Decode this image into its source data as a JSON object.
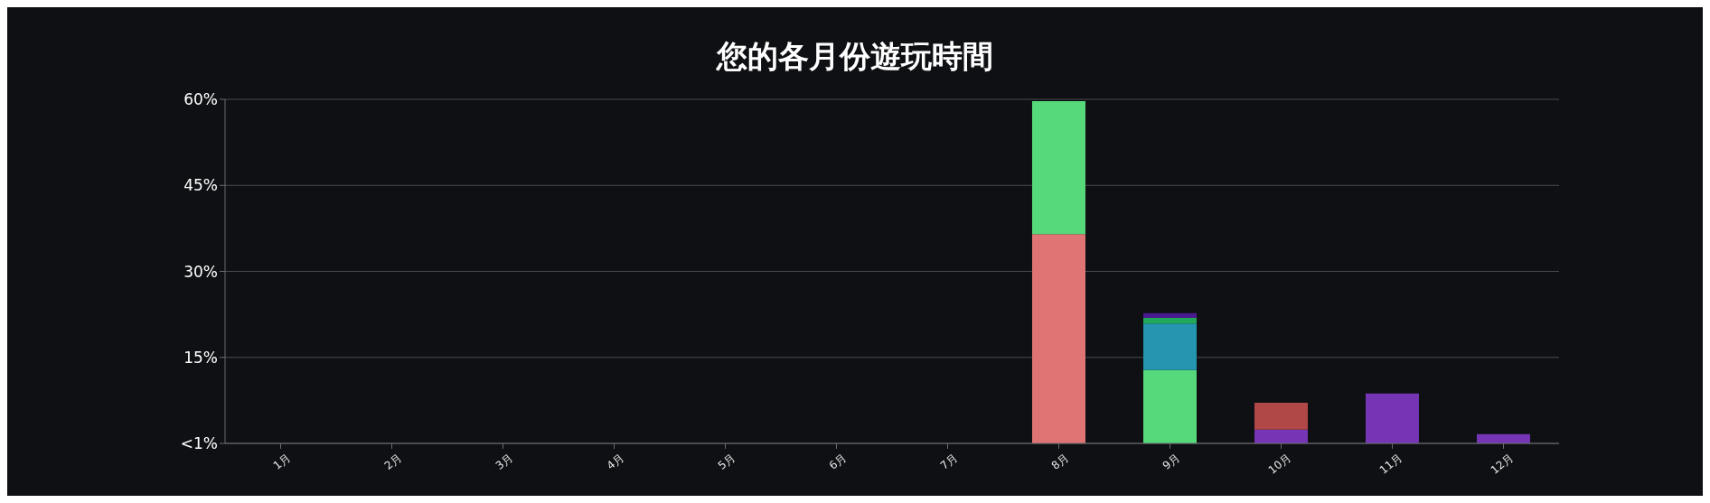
{
  "chart_data": {
    "type": "bar",
    "title": "您的各月份遊玩時間",
    "stacked": true,
    "grid": "y",
    "legend": false,
    "categories": [
      "1月",
      "2月",
      "3月",
      "4月",
      "5月",
      "6月",
      "7月",
      "8月",
      "9月",
      "10月",
      "11月",
      "12月"
    ],
    "ylim": [
      0,
      60
    ],
    "yticks": [
      {
        "value": 0,
        "label": "<1%"
      },
      {
        "value": 15,
        "label": "15%"
      },
      {
        "value": 30,
        "label": "30%"
      },
      {
        "value": 45,
        "label": "45%"
      },
      {
        "value": 60,
        "label": "60%"
      }
    ],
    "series": [
      {
        "color": "#e07474",
        "values": [
          null,
          null,
          null,
          null,
          null,
          null,
          null,
          36.5,
          null,
          null,
          null,
          null
        ]
      },
      {
        "color": "#55d97a",
        "values": [
          null,
          null,
          null,
          null,
          null,
          null,
          null,
          23.2,
          12.8,
          null,
          null,
          null
        ]
      },
      {
        "color": "#7535b5",
        "values": [
          null,
          null,
          null,
          null,
          null,
          null,
          null,
          null,
          null,
          2.4,
          8.7,
          1.6
        ]
      },
      {
        "color": "#2596b0",
        "values": [
          null,
          null,
          null,
          null,
          null,
          null,
          null,
          null,
          8.1,
          null,
          null,
          null
        ]
      },
      {
        "color": "#22a85a",
        "values": [
          null,
          null,
          null,
          null,
          null,
          null,
          null,
          null,
          1.0,
          null,
          null,
          null
        ]
      },
      {
        "color": "#4a1a90",
        "values": [
          null,
          null,
          null,
          null,
          null,
          null,
          null,
          null,
          0.8,
          null,
          null,
          null
        ]
      },
      {
        "color": "#b04848",
        "values": [
          null,
          null,
          null,
          null,
          null,
          null,
          null,
          null,
          null,
          4.7,
          null,
          null
        ]
      }
    ]
  }
}
